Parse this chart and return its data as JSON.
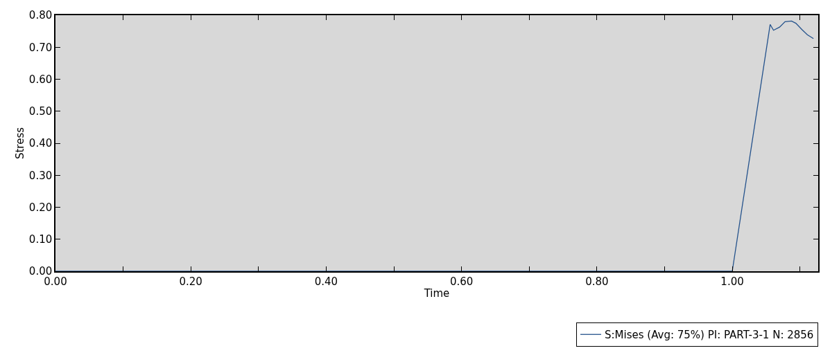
{
  "chart_data": {
    "type": "line",
    "xlabel": "Time",
    "ylabel": "Stress",
    "x": [
      0,
      1.0,
      1.056,
      1.061,
      1.07,
      1.078,
      1.0875,
      1.094,
      1.103,
      1.111,
      1.12
    ],
    "series": [
      {
        "name": "S:Mises (Avg: 75%) PI: PART-3-1 N: 2856",
        "color": "#24528c",
        "values": [
          0,
          0,
          0.771,
          0.753,
          0.763,
          0.78,
          0.782,
          0.775,
          0.755,
          0.739,
          0.727
        ]
      }
    ],
    "xlim": [
      0,
      1.127
    ],
    "ylim": [
      0,
      0.8
    ],
    "xticks": [
      {
        "value": 0,
        "label": "0.00"
      },
      {
        "value": 0.1,
        "label": null
      },
      {
        "value": 0.2,
        "label": "0.20"
      },
      {
        "value": 0.3,
        "label": null
      },
      {
        "value": 0.4,
        "label": "0.40"
      },
      {
        "value": 0.5,
        "label": null
      },
      {
        "value": 0.6,
        "label": "0.60"
      },
      {
        "value": 0.7,
        "label": null
      },
      {
        "value": 0.8,
        "label": "0.80"
      },
      {
        "value": 0.9,
        "label": null
      },
      {
        "value": 1.0,
        "label": "1.00"
      },
      {
        "value": 1.1,
        "label": null
      }
    ],
    "yticks": [
      {
        "value": 0,
        "label": "0.00"
      },
      {
        "value": 0.1,
        "label": "0.10"
      },
      {
        "value": 0.2,
        "label": "0.20"
      },
      {
        "value": 0.3,
        "label": "0.30"
      },
      {
        "value": 0.4,
        "label": "0.40"
      },
      {
        "value": 0.5,
        "label": "0.50"
      },
      {
        "value": 0.6,
        "label": "0.60"
      },
      {
        "value": 0.7,
        "label": "0.70"
      },
      {
        "value": 0.8,
        "label": "0.80"
      }
    ],
    "grid": false,
    "legend": "bottom right",
    "marker": "none",
    "line_style": "solid"
  }
}
